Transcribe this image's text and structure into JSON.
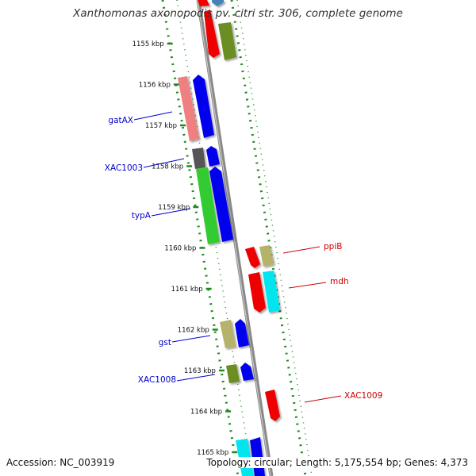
{
  "title": "Xanthomonas axonopodis pv. citri str. 306, complete genome",
  "footer": {
    "accession": "Accession: NC_003919",
    "topology": "Topology: circular; Length: 5,175,554 bp; Genes: 4,373"
  },
  "ticks": [
    {
      "label": "1155 kbp",
      "kbp": 1155
    },
    {
      "label": "1156 kbp",
      "kbp": 1156
    },
    {
      "label": "1157 kbp",
      "kbp": 1157
    },
    {
      "label": "1158 kbp",
      "kbp": 1158
    },
    {
      "label": "1159 kbp",
      "kbp": 1159
    },
    {
      "label": "1160 kbp",
      "kbp": 1160
    },
    {
      "label": "1161 kbp",
      "kbp": 1161
    },
    {
      "label": "1162 kbp",
      "kbp": 1162
    },
    {
      "label": "1163 kbp",
      "kbp": 1163
    },
    {
      "label": "1164 kbp",
      "kbp": 1164
    },
    {
      "label": "1165 kbp",
      "kbp": 1165
    }
  ],
  "gene_labels": [
    {
      "name": "gatAX",
      "color": "#0000cc",
      "strand": "forward"
    },
    {
      "name": "XAC1003",
      "color": "#0000cc",
      "strand": "forward"
    },
    {
      "name": "typA",
      "color": "#0000cc",
      "strand": "forward"
    },
    {
      "name": "gst",
      "color": "#0000cc",
      "strand": "forward"
    },
    {
      "name": "XAC1008",
      "color": "#0000cc",
      "strand": "forward"
    },
    {
      "name": "ppiB",
      "color": "#cc0000",
      "strand": "reverse"
    },
    {
      "name": "mdh",
      "color": "#cc0000",
      "strand": "reverse"
    },
    {
      "name": "XAC1009",
      "color": "#cc0000",
      "strand": "reverse"
    }
  ],
  "colors": {
    "backbone": "#8a8a8a",
    "tick_dots": "#1f8a1f",
    "forward_label": "#0000cc",
    "reverse_label": "#cc0000",
    "cds_blue": "#0000ee",
    "cds_red": "#ee0000",
    "cds_green": "#33cc33",
    "cds_pink": "#f08080",
    "cds_khaki": "#b5b26a",
    "cds_olive": "#6b8e23",
    "cds_cyan": "#00e5ee",
    "cds_gray": "#555555",
    "cds_steel": "#4682b4"
  }
}
